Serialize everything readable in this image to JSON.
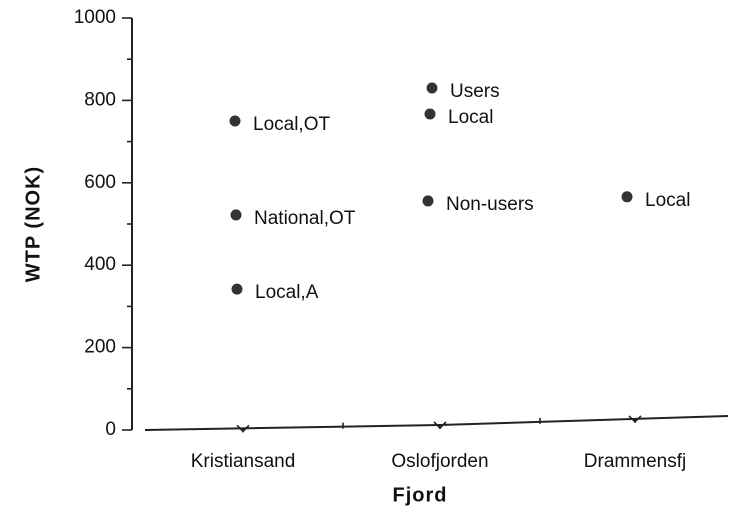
{
  "chart_data": {
    "type": "scatter",
    "x_label": "Fjord",
    "y_label": "WTP (NOK)",
    "categories": [
      "Kristiansand",
      "Oslofjorden",
      "Drammensfj"
    ],
    "point_groups": [
      [
        {
          "label": "Local,OT",
          "value": 750
        },
        {
          "label": "National,OT",
          "value": 522
        },
        {
          "label": "Local,A",
          "value": 342
        }
      ],
      [
        {
          "label": "Users",
          "value": 830
        },
        {
          "label": "Local",
          "value": 767
        },
        {
          "label": "Non-users",
          "value": 556
        }
      ],
      [
        {
          "label": "Local",
          "value": 566
        }
      ]
    ],
    "color": "#333333",
    "ylim": [
      0,
      1000
    ],
    "yticks": [
      0,
      200,
      400,
      600,
      800,
      1000
    ],
    "yminorticks": [
      100,
      300,
      500,
      700,
      900
    ],
    "grid": false
  }
}
